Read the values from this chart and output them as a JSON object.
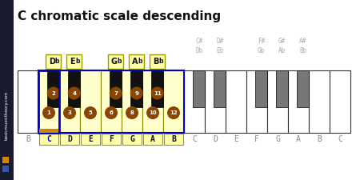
{
  "title": "C chromatic scale descending",
  "title_fontsize": 11,
  "title_fontweight": "bold",
  "background_color": "#ffffff",
  "sidebar_color": "#1a1a2e",
  "sidebar_text": "basicmusictheory.com",
  "circle_color": "#8B4500",
  "circle_text_color": "#ffffff",
  "highlight_fill": "#ffffcc",
  "highlight_border": "#aaaa00",
  "c_border_color": "#0000cc",
  "c_bottom_color": "#cc8800",
  "gray_black_color": "#777777",
  "black_key_color": "#111111",
  "white_key_color": "#ffffff",
  "gray_text_color": "#aaaaaa",
  "dark_text_color": "#111111",
  "blue_text_color": "#0000cc",
  "white_labels": [
    "B",
    "C",
    "D",
    "E",
    "F",
    "G",
    "A",
    "B",
    "C",
    "D",
    "E",
    "F",
    "G",
    "A",
    "B",
    "C"
  ],
  "highlighted_white_idx": [
    1,
    2,
    3,
    4,
    5,
    6,
    7
  ],
  "highlighted_white_nums": [
    1,
    3,
    5,
    6,
    8,
    10,
    12
  ],
  "black_keys": [
    {
      "i1": 1,
      "i2": 2,
      "name": "C#/Db",
      "highlighted": true,
      "num": 2
    },
    {
      "i1": 2,
      "i2": 3,
      "name": "D#/Eb",
      "highlighted": true,
      "num": 4
    },
    {
      "i1": 4,
      "i2": 5,
      "name": "F#/Gb",
      "highlighted": true,
      "num": 7
    },
    {
      "i1": 5,
      "i2": 6,
      "name": "G#/Ab",
      "highlighted": true,
      "num": 9
    },
    {
      "i1": 6,
      "i2": 7,
      "name": "A#/Bb",
      "highlighted": true,
      "num": 11
    },
    {
      "i1": 8,
      "i2": 9,
      "name": "C#/Db",
      "highlighted": false,
      "num": null
    },
    {
      "i1": 9,
      "i2": 10,
      "name": "D#/Eb",
      "highlighted": false,
      "num": null
    },
    {
      "i1": 11,
      "i2": 12,
      "name": "F#/Gb",
      "highlighted": false,
      "num": null
    },
    {
      "i1": 12,
      "i2": 13,
      "name": "G#/Ab",
      "highlighted": false,
      "num": null
    },
    {
      "i1": 13,
      "i2": 14,
      "name": "A#/Bb",
      "highlighted": false,
      "num": null
    }
  ],
  "above_labels_highlighted": [
    {
      "name": "Db",
      "i1": 1,
      "i2": 2
    },
    {
      "name": "Eb",
      "i1": 2,
      "i2": 3
    },
    {
      "name": "Gb",
      "i1": 4,
      "i2": 5
    },
    {
      "name": "Ab",
      "i1": 5,
      "i2": 6
    },
    {
      "name": "Bb",
      "i1": 6,
      "i2": 7
    }
  ],
  "gray_accidentals": [
    {
      "sharp": "C#",
      "flat": "Db",
      "i1": 8
    },
    {
      "sharp": "D#",
      "flat": "Eb",
      "i1": 9
    },
    {
      "sharp": "F#",
      "flat": "Gb",
      "i1": 11
    },
    {
      "sharp": "G#",
      "flat": "Ab",
      "i1": 12
    },
    {
      "sharp": "A#",
      "flat": "Bb",
      "i1": 13
    }
  ]
}
